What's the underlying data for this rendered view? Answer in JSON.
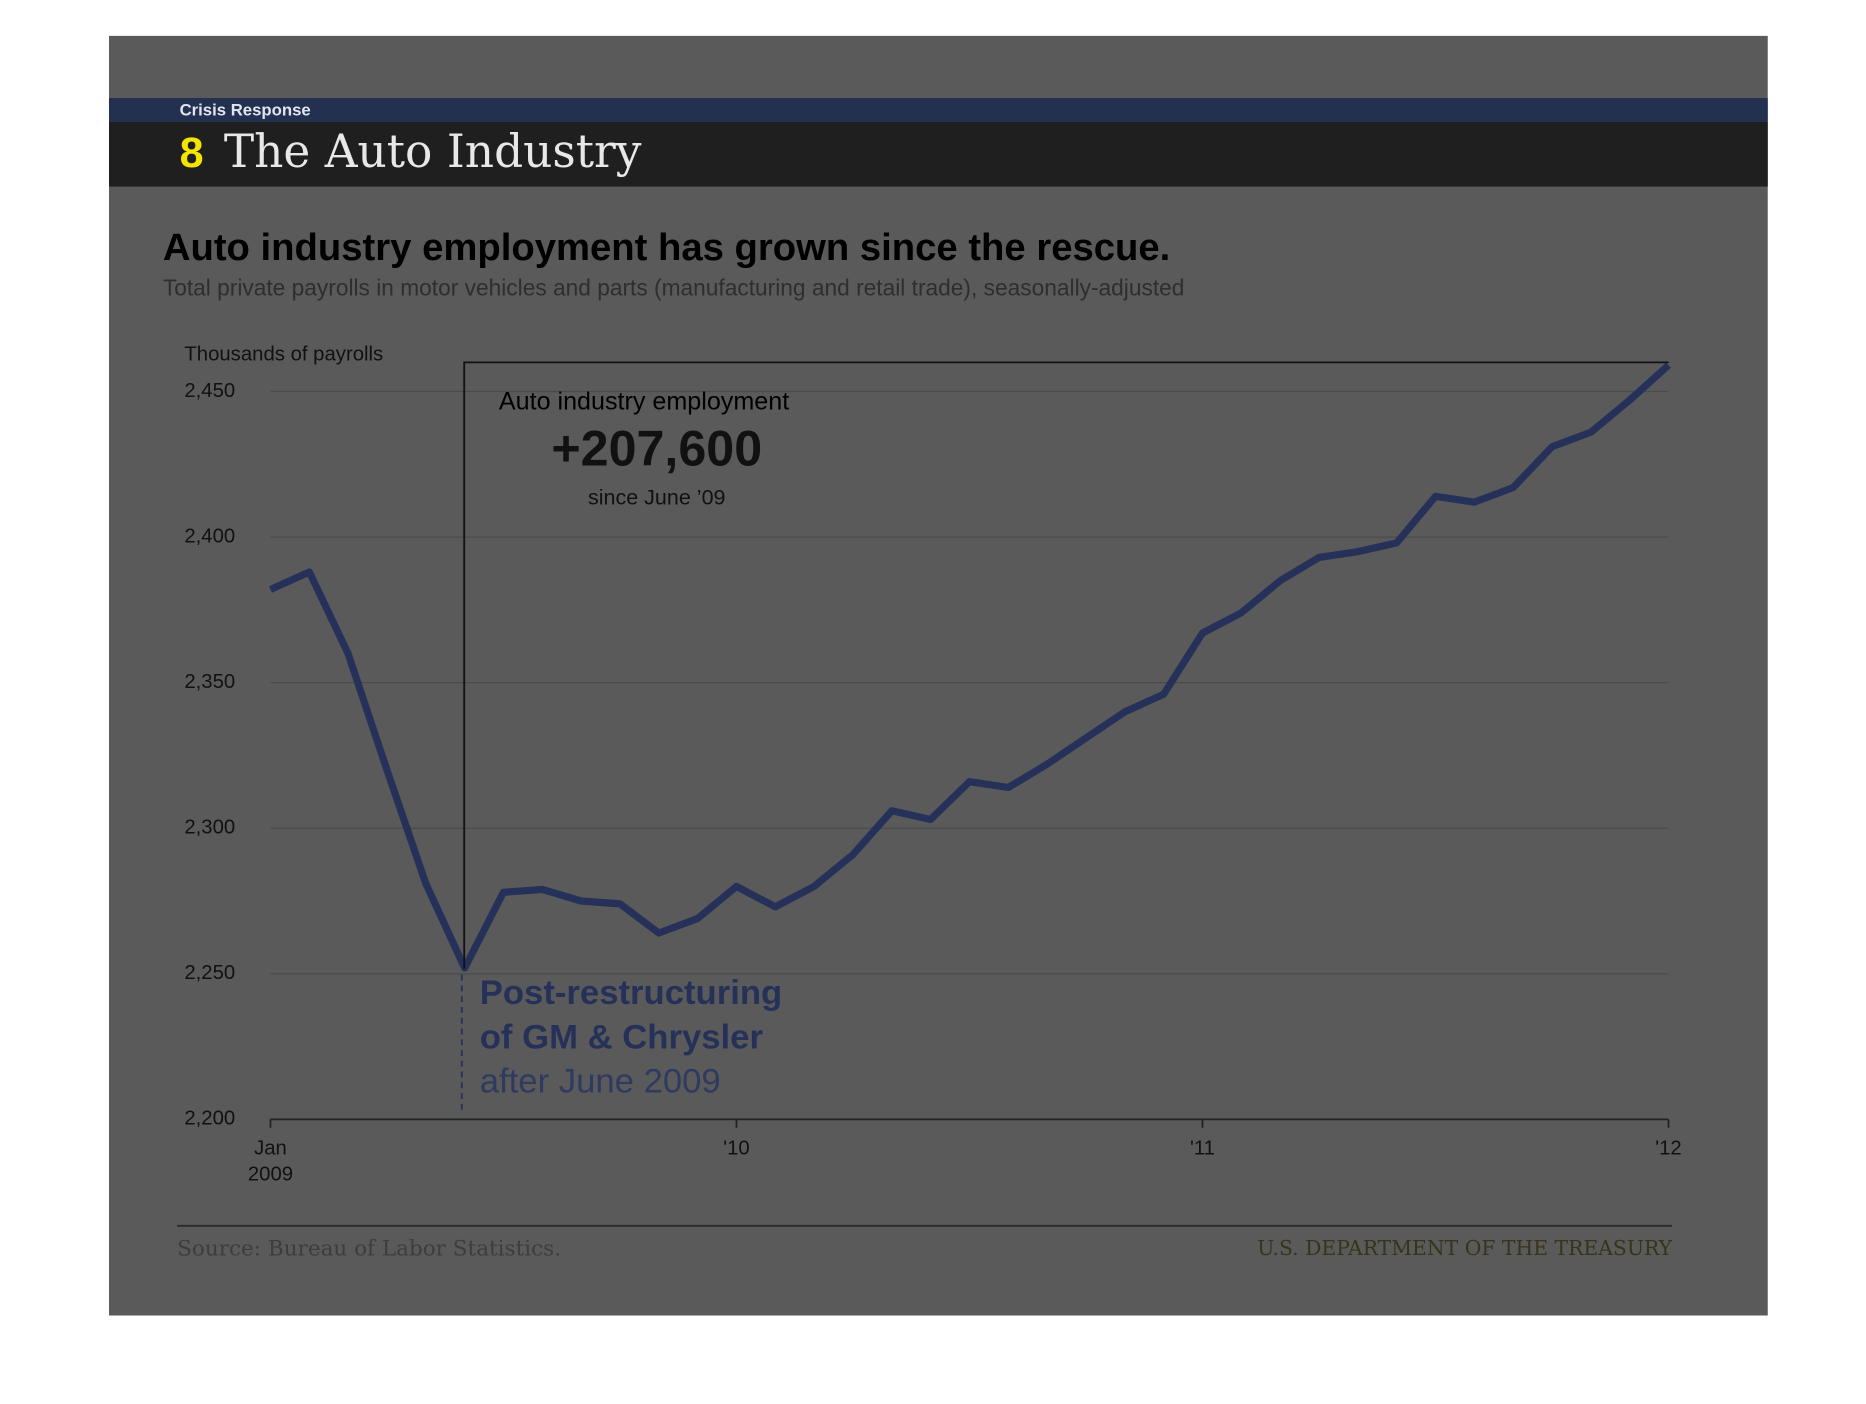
{
  "header": {
    "section": "Crisis Response",
    "number": "8",
    "title": "The Auto Industry"
  },
  "chart_data": {
    "type": "line",
    "title": "Auto industry employment has grown since the rescue.",
    "subtitle": "Total private payrolls in motor vehicles and parts (manufacturing and retail trade), seasonally-adjusted",
    "y_label": "Thousands of payrolls",
    "categories": [
      "Jan 2009",
      null,
      null,
      null,
      null,
      null,
      null,
      null,
      null,
      null,
      null,
      null,
      "'10",
      null,
      null,
      null,
      null,
      null,
      null,
      null,
      null,
      null,
      null,
      null,
      "'11",
      null,
      null,
      null,
      null,
      null,
      null,
      null,
      null,
      null,
      null,
      null,
      "'12"
    ],
    "series": [
      {
        "name": "Auto industry employment",
        "color": "#26315a",
        "values": [
          2382,
          2388,
          2360,
          2320,
          2281,
          2252,
          2278,
          2279,
          2275,
          2274,
          2264,
          2269,
          2280,
          2273,
          2280,
          2291,
          2306,
          2303,
          2316,
          2314,
          2322,
          2331,
          2340,
          2346,
          2367,
          2374,
          2385,
          2393,
          2395,
          2398,
          2414,
          2412,
          2417,
          2431,
          2436,
          2447,
          2459
        ]
      }
    ],
    "ylim": [
      2200,
      2460
    ],
    "yticks": [
      {
        "value": 2200,
        "label": "2,200"
      },
      {
        "value": 2250,
        "label": "2,250"
      },
      {
        "value": 2300,
        "label": "2,300"
      },
      {
        "value": 2350,
        "label": "2,350"
      },
      {
        "value": 2400,
        "label": "2,400"
      },
      {
        "value": 2450,
        "label": "2,450"
      }
    ],
    "grid": true,
    "annotations": {
      "box_title": "Auto industry employment",
      "change": "+207,600",
      "since": "since June ’09",
      "restructuring": [
        "Post-restructuring",
        "of GM & Chrysler",
        "after June 2009"
      ]
    },
    "source": "Source: Bureau of Labor Statistics.",
    "credit": "U.S. DEPARTMENT OF THE TREASURY"
  }
}
